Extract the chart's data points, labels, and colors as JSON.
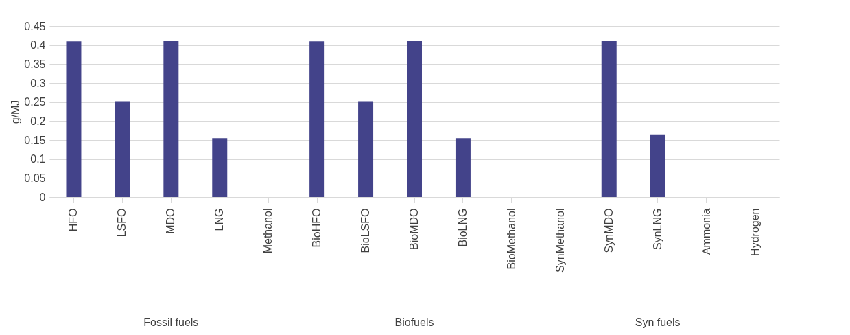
{
  "chart_data": {
    "type": "bar",
    "ylabel": "g/MJ",
    "categories": [
      "HFO",
      "LSFO",
      "MDO",
      "LNG",
      "Methanol",
      "BioHFO",
      "BioLSFO",
      "BioMDO",
      "BioLNG",
      "BioMethanol",
      "SynMethanol",
      "SynMDO",
      "SynLNG",
      "Ammonia",
      "Hydrogen"
    ],
    "values": [
      0.41,
      0.252,
      0.412,
      0.155,
      0,
      0.41,
      0.252,
      0.412,
      0.155,
      0,
      0,
      0.412,
      0.165,
      0,
      0
    ],
    "color": "#43438a",
    "ylim": [
      0,
      0.45
    ],
    "yticks": [
      0,
      0.05,
      0.1,
      0.15,
      0.2,
      0.25,
      0.3,
      0.35,
      0.4,
      0.45
    ],
    "grid": "y",
    "annotations": [
      "Fossil fuels",
      "Biofuels",
      "Syn fuels"
    ]
  }
}
